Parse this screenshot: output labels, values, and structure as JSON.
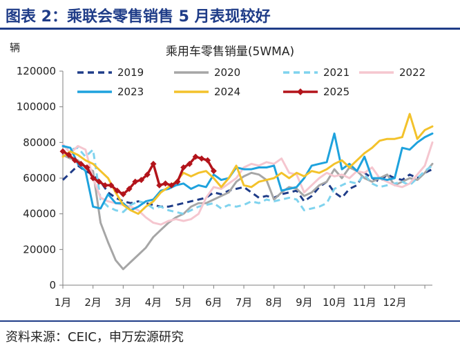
{
  "header": {
    "title": "图表 2：乘联会零售销售 5 月表现较好"
  },
  "footer": {
    "source": "资料来源：CEIC，申万宏源研究"
  },
  "chart_data": {
    "type": "line",
    "title": "乘用车零售销量(5WMA)",
    "ylabel": "辆",
    "ylim": [
      0,
      120000
    ],
    "yticks": [
      0,
      20000,
      40000,
      60000,
      80000,
      100000,
      120000
    ],
    "ytick_labels": [
      "0",
      "20000",
      "40000",
      "60000",
      "80000",
      "100000",
      "120000"
    ],
    "xlim": [
      1,
      13.25
    ],
    "categories": [
      "1月",
      "2月",
      "3月",
      "4月",
      "5月",
      "6月",
      "7月",
      "8月",
      "9月",
      "10月",
      "11月",
      "12月"
    ],
    "legend_position": "top",
    "grid": false,
    "series": [
      {
        "name": "2019",
        "color": "#1f3c88",
        "style": "dash",
        "x": [
          1,
          1.25,
          1.5,
          1.75,
          2,
          2.25,
          2.5,
          2.75,
          3,
          3.25,
          3.5,
          3.75,
          4,
          4.25,
          4.5,
          4.75,
          5,
          5.25,
          5.5,
          5.75,
          6,
          6.25,
          6.5,
          6.75,
          7,
          7.25,
          7.5,
          7.75,
          8,
          8.25,
          8.5,
          8.75,
          9,
          9.25,
          9.5,
          9.75,
          10,
          10.25,
          10.5,
          10.75,
          11,
          11.25,
          11.5,
          11.75,
          12,
          12.25,
          12.5,
          12.75,
          13,
          13.25
        ],
        "y": [
          59000,
          63000,
          67000,
          64000,
          62000,
          58000,
          52000,
          49000,
          47000,
          46000,
          47000,
          46000,
          45000,
          44000,
          44000,
          45000,
          46000,
          47000,
          48000,
          49000,
          52000,
          51000,
          53000,
          54000,
          55000,
          52000,
          49000,
          50000,
          49000,
          51000,
          52000,
          53000,
          47000,
          50000,
          55000,
          58000,
          52000,
          49000,
          54000,
          56000,
          63000,
          60000,
          58000,
          62000,
          60000,
          59000,
          62000,
          60000,
          63000,
          65000
        ]
      },
      {
        "name": "2020",
        "color": "#a6a6a6",
        "style": "solid",
        "x": [
          1,
          1.25,
          1.5,
          1.75,
          2,
          2.25,
          2.5,
          2.75,
          3,
          3.25,
          3.5,
          3.75,
          4,
          4.25,
          4.5,
          4.75,
          5,
          5.25,
          5.5,
          5.75,
          6,
          6.25,
          6.5,
          6.75,
          7,
          7.25,
          7.5,
          7.75,
          8,
          8.25,
          8.5,
          8.75,
          9,
          9.25,
          9.5,
          9.75,
          10,
          10.25,
          10.5,
          10.75,
          11,
          11.25,
          11.5,
          11.75,
          12,
          12.25,
          12.5,
          12.75,
          13,
          13.25
        ],
        "y": [
          73000,
          71000,
          70000,
          66000,
          64000,
          35000,
          24000,
          14000,
          9000,
          13000,
          17000,
          21000,
          27000,
          31000,
          35000,
          38000,
          40000,
          44000,
          46000,
          46000,
          48000,
          50000,
          52000,
          58000,
          61000,
          63000,
          62000,
          59000,
          48000,
          52000,
          55000,
          54000,
          50000,
          52000,
          56000,
          58000,
          65000,
          60000,
          66000,
          64000,
          60000,
          58000,
          60000,
          62000,
          56000,
          58000,
          60000,
          59000,
          63000,
          68000
        ]
      },
      {
        "name": "2021",
        "color": "#7fd3ee",
        "style": "dash",
        "x": [
          1,
          1.25,
          1.5,
          1.75,
          2,
          2.25,
          2.5,
          2.75,
          3,
          3.25,
          3.5,
          3.75,
          4,
          4.25,
          4.5,
          4.75,
          5,
          5.25,
          5.5,
          5.75,
          6,
          6.25,
          6.5,
          6.75,
          7,
          7.25,
          7.5,
          7.75,
          8,
          8.25,
          8.5,
          8.75,
          9,
          9.25,
          9.5,
          9.75,
          10,
          10.25,
          10.5,
          10.75,
          11,
          11.25,
          11.5,
          11.75,
          12,
          12.25,
          12.5,
          12.75,
          13,
          13.25
        ],
        "y": [
          78000,
          76000,
          77000,
          72000,
          76000,
          48000,
          44000,
          42000,
          41000,
          45000,
          47000,
          46000,
          43000,
          44000,
          42000,
          41000,
          40000,
          42000,
          44000,
          45000,
          46000,
          43000,
          45000,
          44000,
          45000,
          47000,
          46000,
          48000,
          47000,
          48000,
          49000,
          48000,
          42000,
          43000,
          44000,
          46000,
          54000,
          56000,
          58000,
          57000,
          62000,
          57000,
          55000,
          56000,
          57000,
          58000,
          56000,
          60000,
          64000,
          67000
        ]
      },
      {
        "name": "2022",
        "color": "#f5c6cf",
        "style": "solid",
        "x": [
          1,
          1.25,
          1.5,
          1.75,
          2,
          2.25,
          2.5,
          2.75,
          3,
          3.25,
          3.5,
          3.75,
          4,
          4.25,
          4.5,
          4.75,
          5,
          5.25,
          5.5,
          5.75,
          6,
          6.25,
          6.5,
          6.75,
          7,
          7.25,
          7.5,
          7.75,
          8,
          8.25,
          8.5,
          8.75,
          9,
          9.25,
          9.5,
          9.75,
          10,
          10.25,
          10.5,
          10.75,
          11,
          11.25,
          11.5,
          11.75,
          12,
          12.25,
          12.5,
          12.75,
          13,
          13.25
        ],
        "y": [
          79000,
          74000,
          78000,
          76000,
          60000,
          49000,
          47000,
          46000,
          45000,
          44000,
          42000,
          38000,
          35000,
          34000,
          36000,
          37000,
          36000,
          37000,
          40000,
          49000,
          55000,
          54000,
          57000,
          60000,
          66000,
          68000,
          67000,
          69000,
          68000,
          71000,
          63000,
          62000,
          52000,
          56000,
          60000,
          63000,
          61000,
          62000,
          60000,
          64000,
          63000,
          66000,
          60000,
          58000,
          56000,
          55000,
          57000,
          62000,
          67000,
          80000
        ]
      },
      {
        "name": "2023",
        "color": "#1ea2dd",
        "style": "solid",
        "x": [
          1,
          1.25,
          1.5,
          1.75,
          2,
          2.25,
          2.5,
          2.75,
          3,
          3.25,
          3.5,
          3.75,
          4,
          4.25,
          4.5,
          4.75,
          5,
          5.25,
          5.5,
          5.75,
          6,
          6.25,
          6.5,
          6.75,
          7,
          7.25,
          7.5,
          7.75,
          8,
          8.25,
          8.5,
          8.75,
          9,
          9.25,
          9.5,
          9.75,
          10,
          10.25,
          10.5,
          10.75,
          11,
          11.25,
          11.5,
          11.75,
          12,
          12.25,
          12.5,
          12.75,
          13,
          13.25
        ],
        "y": [
          78000,
          77000,
          68000,
          64000,
          44000,
          43000,
          51000,
          46000,
          46000,
          42000,
          44000,
          47000,
          48000,
          53000,
          54000,
          56000,
          57000,
          54000,
          56000,
          55000,
          62000,
          59000,
          60000,
          66000,
          65000,
          65000,
          66000,
          66000,
          67000,
          53000,
          54000,
          55000,
          60000,
          67000,
          68000,
          69000,
          85000,
          65000,
          68000,
          64000,
          72000,
          60000,
          60000,
          59000,
          60000,
          77000,
          76000,
          80000,
          83000,
          85000
        ]
      },
      {
        "name": "2024",
        "color": "#f3c22b",
        "style": "solid",
        "x": [
          1,
          1.25,
          1.5,
          1.75,
          2,
          2.25,
          2.5,
          2.75,
          3,
          3.25,
          3.5,
          3.75,
          4,
          4.25,
          4.5,
          4.75,
          5,
          5.25,
          5.5,
          5.75,
          6,
          6.25,
          6.5,
          6.75,
          7,
          7.25,
          7.5,
          7.75,
          8,
          8.25,
          8.5,
          8.75,
          9,
          9.25,
          9.5,
          9.75,
          10,
          10.25,
          10.5,
          10.75,
          11,
          11.25,
          11.5,
          11.75,
          12,
          12.25,
          12.5,
          12.75,
          13,
          13.25
        ],
        "y": [
          72000,
          75000,
          73000,
          70000,
          68000,
          64000,
          60000,
          52000,
          45000,
          42000,
          40000,
          44000,
          47000,
          52000,
          55000,
          58000,
          63000,
          61000,
          63000,
          64000,
          60000,
          55000,
          60000,
          67000,
          56000,
          55000,
          58000,
          59000,
          60000,
          63000,
          60000,
          63000,
          61000,
          64000,
          63000,
          65000,
          68000,
          70000,
          66000,
          70000,
          74000,
          77000,
          81000,
          82000,
          82000,
          83000,
          96000,
          82000,
          87000,
          89000
        ]
      },
      {
        "name": "2025",
        "color": "#b3141b",
        "style": "solid-marker",
        "x": [
          1,
          1.2,
          1.4,
          1.6,
          1.8,
          2,
          2.2,
          2.4,
          2.6,
          2.8,
          3,
          3.2,
          3.4,
          3.6,
          3.8,
          4,
          4.2,
          4.4,
          4.6,
          4.8,
          5,
          5.2,
          5.4,
          5.6,
          5.8,
          6
        ],
        "y": [
          75000,
          73000,
          70000,
          68000,
          66000,
          60000,
          58000,
          56000,
          56000,
          53000,
          51000,
          54000,
          58000,
          59000,
          62000,
          68000,
          56000,
          57000,
          56000,
          58000,
          66000,
          68000,
          72000,
          71000,
          70000,
          64000
        ]
      }
    ]
  }
}
